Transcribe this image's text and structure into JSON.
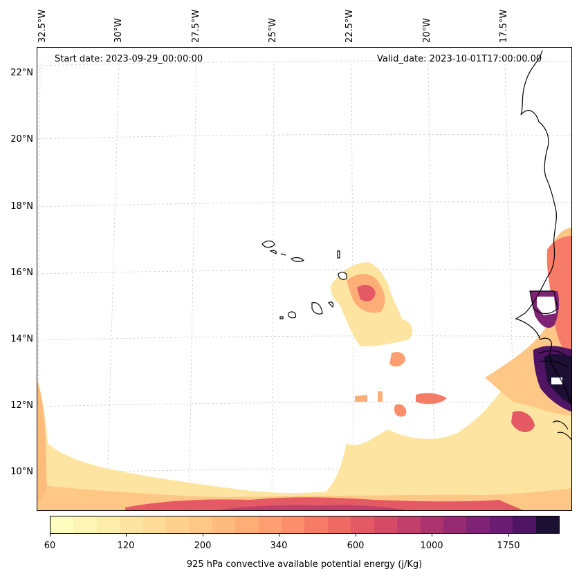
{
  "header": {
    "start_date": "Start date: 2023-09-29_00:00:00",
    "valid_date": "Valid_date: 2023-10-01T17:00:00.00"
  },
  "axes": {
    "lat_labels": [
      "22°N",
      "20°N",
      "18°N",
      "16°N",
      "14°N",
      "12°N",
      "10°N"
    ],
    "lon_labels": [
      "32.5°W",
      "30°W",
      "27.5°W",
      "25°W",
      "22.5°W",
      "20°W",
      "17.5°W"
    ]
  },
  "colorbar": {
    "title": "925 hPa convective available potential energy (j/Kg)",
    "tick_labels": [
      "60",
      "120",
      "200",
      "340",
      "600",
      "1000",
      "1750"
    ],
    "colors": [
      "#fcfdbf",
      "#fcf5b5",
      "#fdedaa",
      "#fde4a0",
      "#fedb96",
      "#fed18d",
      "#fec786",
      "#febb7e",
      "#fdae77",
      "#fd9f71",
      "#fb8f6b",
      "#f67c67",
      "#ef6a65",
      "#e55964",
      "#d64a66",
      "#c33f6b",
      "#ad336f",
      "#962b73",
      "#7f2374",
      "#691c72",
      "#4f1463",
      "#1b1033"
    ]
  },
  "chart_data": {
    "type": "heatmap",
    "title": "925 hPa convective available potential energy (j/Kg)",
    "lat_range": [
      "22°N",
      "10°N"
    ],
    "lon_range": [
      "32.5°W",
      "17.5°W"
    ],
    "colorbar_ticks": [
      60,
      120,
      200,
      340,
      600,
      1000,
      1750
    ],
    "start_date": "2023-09-29_00:00:00",
    "valid_date": "2023-10-01T17:00:00.00"
  }
}
